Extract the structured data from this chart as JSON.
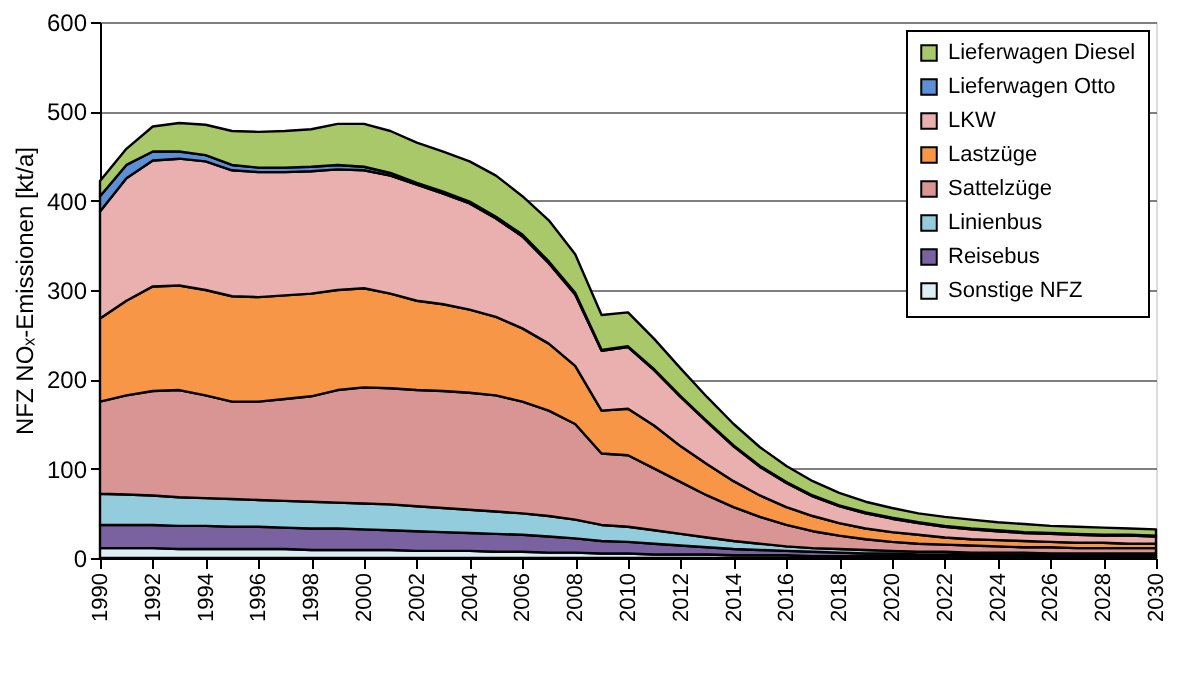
{
  "chart_data": {
    "type": "area",
    "stacked": true,
    "ylabel": "NFZ NOₓ-Emissionen  [kt/a]",
    "x": [
      1990,
      1991,
      1992,
      1993,
      1994,
      1995,
      1996,
      1997,
      1998,
      1999,
      2000,
      2001,
      2002,
      2003,
      2004,
      2005,
      2006,
      2007,
      2008,
      2009,
      2010,
      2011,
      2012,
      2013,
      2014,
      2015,
      2016,
      2017,
      2018,
      2019,
      2020,
      2021,
      2022,
      2023,
      2024,
      2025,
      2026,
      2027,
      2028,
      2029,
      2030
    ],
    "xlim": [
      1990,
      2030
    ],
    "xticks": [
      1990,
      1992,
      1994,
      1996,
      1998,
      2000,
      2002,
      2004,
      2006,
      2008,
      2010,
      2012,
      2014,
      2016,
      2018,
      2020,
      2022,
      2024,
      2026,
      2028,
      2030
    ],
    "ylim": [
      0,
      600
    ],
    "yticks": [
      0,
      100,
      200,
      300,
      400,
      500,
      600
    ],
    "grid": "y",
    "legend": "top right",
    "series": [
      {
        "name": "Sonstige NFZ",
        "color": "#dbeef4",
        "values": [
          11,
          11,
          11,
          10,
          10,
          10,
          10,
          10,
          9,
          9,
          9,
          9,
          8,
          8,
          8,
          7,
          7,
          6,
          6,
          5,
          5,
          4,
          4,
          4,
          3,
          3,
          3,
          2,
          2,
          2,
          2,
          2,
          2,
          1,
          1,
          1,
          1,
          1,
          1,
          1,
          1
        ]
      },
      {
        "name": "Reisebus",
        "color": "#7a62a0",
        "values": [
          26,
          26,
          26,
          26,
          26,
          25,
          25,
          24,
          24,
          24,
          23,
          22,
          22,
          21,
          20,
          20,
          19,
          18,
          16,
          14,
          13,
          12,
          10,
          8,
          7,
          6,
          5,
          5,
          4,
          3,
          3,
          2,
          2,
          3,
          2,
          2,
          2,
          2,
          2,
          2,
          2
        ]
      },
      {
        "name": "Linienbus",
        "color": "#93cddd",
        "values": [
          35,
          34,
          33,
          32,
          31,
          31,
          30,
          30,
          30,
          29,
          29,
          29,
          28,
          27,
          26,
          25,
          24,
          23,
          21,
          18,
          17,
          15,
          13,
          11,
          9,
          7,
          5,
          4,
          4,
          4,
          3,
          3,
          3,
          2,
          3,
          3,
          2,
          2,
          2,
          2,
          2
        ]
      },
      {
        "name": "Sattelzüge",
        "color": "#d99594",
        "values": [
          103,
          111,
          117,
          120,
          115,
          109,
          110,
          114,
          118,
          126,
          130,
          130,
          130,
          131,
          131,
          130,
          125,
          118,
          107,
          80,
          80,
          69,
          58,
          47,
          38,
          30,
          24,
          19,
          15,
          12,
          10,
          9,
          8,
          8,
          7,
          6,
          7,
          6,
          6,
          6,
          6
        ]
      },
      {
        "name": "Lastzüge",
        "color": "#f79646",
        "values": [
          93,
          106,
          117,
          117,
          118,
          118,
          117,
          116,
          115,
          112,
          111,
          106,
          100,
          97,
          93,
          88,
          82,
          75,
          65,
          48,
          52,
          48,
          40,
          35,
          29,
          24,
          20,
          17,
          14,
          12,
          11,
          10,
          8,
          7,
          7,
          7,
          6,
          6,
          6,
          5,
          5
        ]
      },
      {
        "name": "LKW",
        "color": "#eab0b0",
        "values": [
          120,
          137,
          141,
          142,
          144,
          141,
          140,
          138,
          137,
          135,
          132,
          132,
          130,
          124,
          119,
          110,
          103,
          90,
          80,
          67,
          69,
          62,
          55,
          47,
          39,
          32,
          27,
          22,
          19,
          17,
          15,
          13,
          12,
          11,
          10,
          9,
          9,
          9,
          8,
          9,
          8
        ]
      },
      {
        "name": "Lieferwagen Otto",
        "color": "#5b8fd6",
        "values": [
          17,
          15,
          10,
          8,
          7,
          6,
          5,
          5,
          5,
          5,
          4,
          3,
          2,
          2,
          2,
          2,
          2,
          2,
          2,
          1,
          1,
          1,
          1,
          1,
          1,
          1,
          1,
          1,
          1,
          1,
          1,
          1,
          1,
          1,
          1,
          1,
          1,
          1,
          1,
          1,
          1
        ]
      },
      {
        "name": "Lieferwagen Diesel",
        "color": "#a9c86a",
        "values": [
          17,
          18,
          28,
          32,
          34,
          38,
          40,
          41,
          42,
          46,
          48,
          47,
          45,
          45,
          45,
          46,
          43,
          46,
          43,
          39,
          38,
          34,
          31,
          27,
          24,
          21,
          18,
          16,
          14,
          12,
          11,
          10,
          10,
          10,
          9,
          9,
          8,
          8,
          8,
          7,
          7
        ]
      }
    ]
  }
}
